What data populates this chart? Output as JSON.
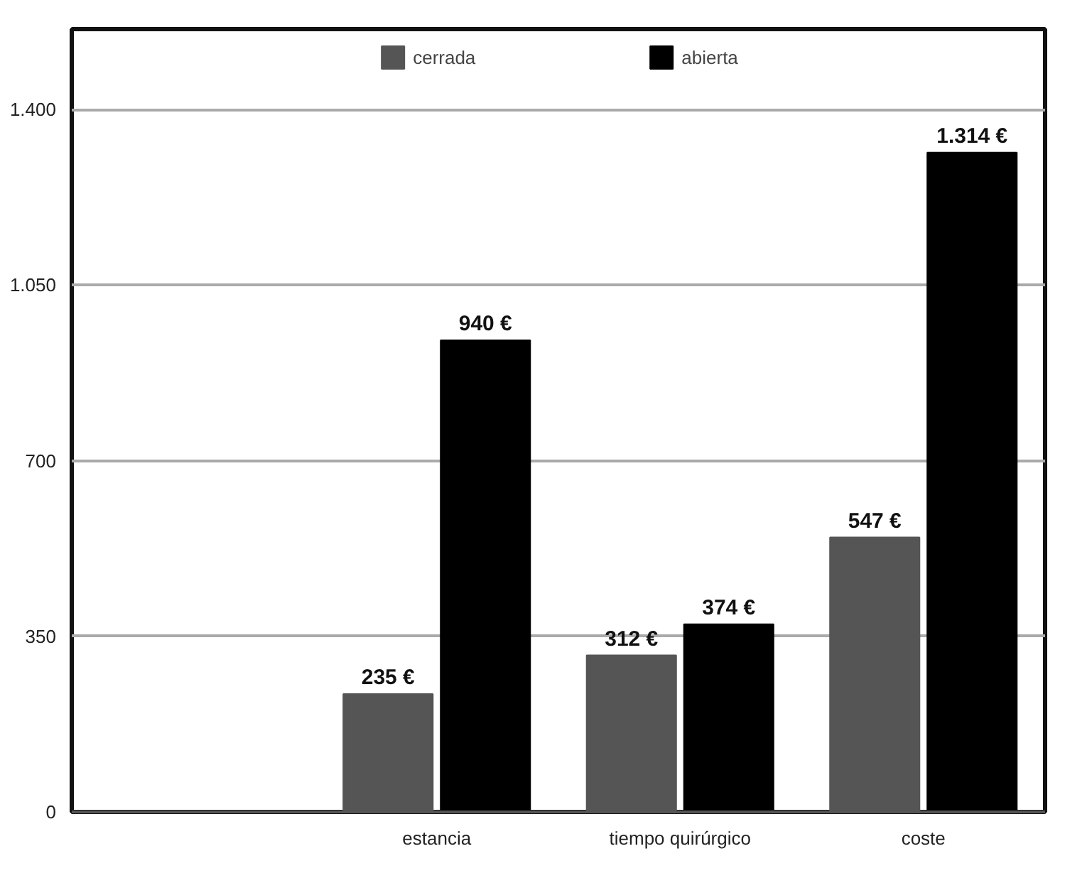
{
  "chart_data": {
    "type": "bar",
    "categories": [
      null,
      "estancia",
      "tiempo quirúrgico",
      "coste"
    ],
    "series": [
      {
        "name": "cerrada",
        "color": "#555555",
        "values": [
          null,
          235,
          312,
          547
        ],
        "value_labels": [
          null,
          "235 €",
          "312 €",
          "547 €"
        ]
      },
      {
        "name": "abierta",
        "color": "#000000",
        "values": [
          null,
          940,
          374,
          1314
        ],
        "value_labels": [
          null,
          "940 €",
          "374 €",
          "1.314 €"
        ]
      }
    ],
    "ylim": [
      0,
      1560
    ],
    "yticks": [
      0,
      350,
      700,
      {
        "value": 1050,
        "label": "1.050"
      },
      {
        "value": 1400,
        "label": "1.400"
      }
    ],
    "grid": "y",
    "legend": "top"
  }
}
